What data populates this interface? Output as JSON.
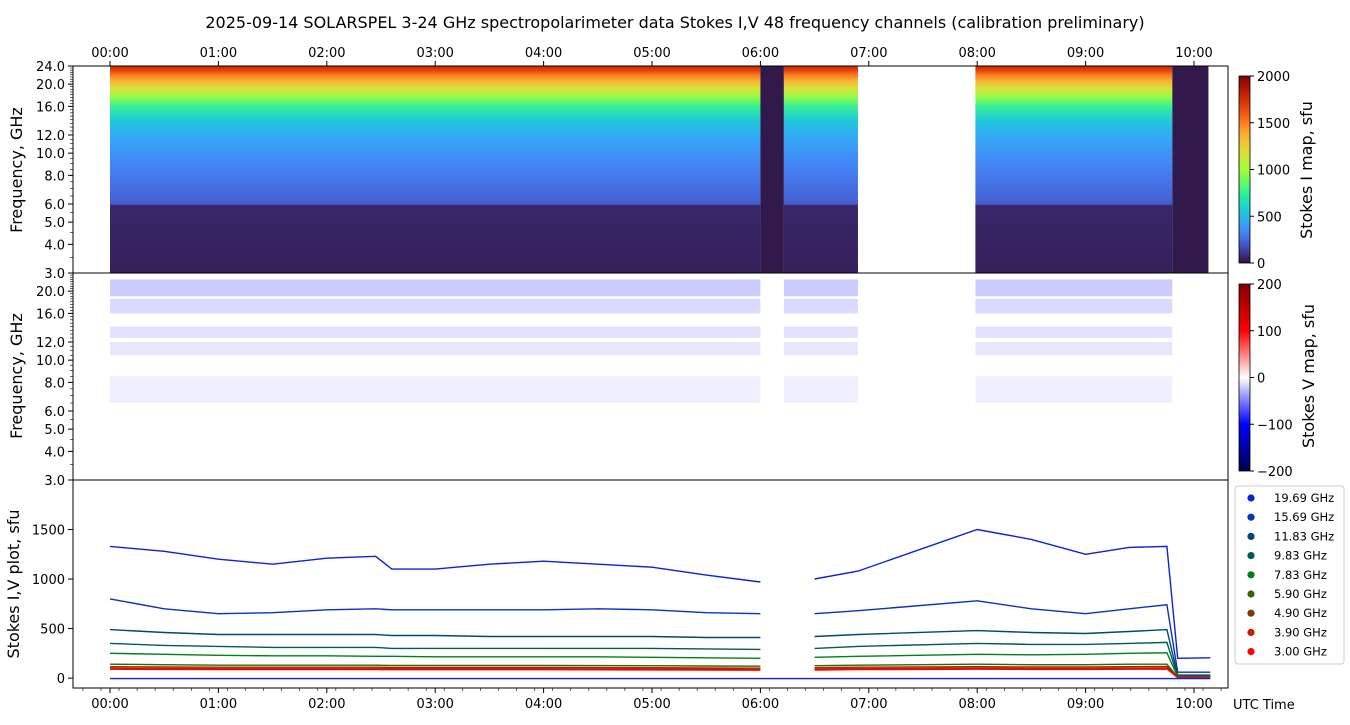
{
  "title": "2025-09-14  SOLARSPEL  3-24 GHz spectropolarimeter data   Stokes I,V   48 frequency channels   (calibration preliminary)",
  "colors": {
    "background": "#ffffff",
    "stokes_i_cmap": "turbo",
    "stokes_v_cmap": "seismic",
    "data_gap": "#ffffff"
  },
  "chart_data": [
    {
      "type": "heatmap",
      "name_hint": "stokes-i-map",
      "ylabel": "Frequency, GHz",
      "colorbar_label": "Stokes I map, sfu",
      "colorbar_range": [
        0,
        2000
      ],
      "colorbar_ticks": [
        "0",
        "500",
        "1000",
        "1500",
        "2000"
      ],
      "colormap": "turbo",
      "xlim": [
        "00:00",
        "10:00"
      ],
      "ylim": [
        3.0,
        24.0
      ],
      "yscale": "log",
      "y_ticks": [
        "3.0",
        "4.0",
        "5.0",
        "6.0",
        "8.0",
        "10.0",
        "12.0",
        "16.0",
        "20.0",
        "24.0"
      ],
      "x_ticks_top": [
        "00:00",
        "01:00",
        "02:00",
        "03:00",
        "04:00",
        "05:00",
        "06:00",
        "07:00",
        "08:00",
        "09:00",
        "10:00"
      ],
      "observation_segments": [
        {
          "start": "00:00",
          "end": "06:00",
          "state": "normal"
        },
        {
          "start": "06:00",
          "end": "06:13",
          "state": "low"
        },
        {
          "start": "06:13",
          "end": "06:54",
          "state": "normal"
        },
        {
          "start": "07:59",
          "end": "09:48",
          "state": "normal"
        },
        {
          "start": "09:48",
          "end": "10:08",
          "state": "low"
        }
      ],
      "spectrum_sfu": [
        {
          "freq": 3.0,
          "value": 40
        },
        {
          "freq": 5.9,
          "value": 60
        },
        {
          "freq": 6.0,
          "value": 220
        },
        {
          "freq": 8.0,
          "value": 300
        },
        {
          "freq": 10.0,
          "value": 380
        },
        {
          "freq": 12.0,
          "value": 460
        },
        {
          "freq": 14.0,
          "value": 560
        },
        {
          "freq": 16.0,
          "value": 760
        },
        {
          "freq": 17.5,
          "value": 950
        },
        {
          "freq": 19.0,
          "value": 1150
        },
        {
          "freq": 20.5,
          "value": 1330
        },
        {
          "freq": 22.0,
          "value": 1520
        },
        {
          "freq": 23.0,
          "value": 1680
        },
        {
          "freq": 24.0,
          "value": 1780
        }
      ]
    },
    {
      "type": "heatmap",
      "name_hint": "stokes-v-map",
      "ylabel": "Frequency, GHz",
      "colorbar_label": "Stokes V map, sfu",
      "colorbar_range": [
        -200,
        200
      ],
      "colorbar_ticks": [
        "−200",
        "−100",
        "0",
        "100",
        "200"
      ],
      "colormap": "seismic",
      "xlim": [
        "00:00",
        "10:00"
      ],
      "ylim": [
        3.0,
        24.0
      ],
      "yscale": "log",
      "y_ticks": [
        "3.0",
        "4.0",
        "5.0",
        "6.0",
        "8.0",
        "10.0",
        "12.0",
        "16.0",
        "20.0"
      ],
      "v_bands_sfu": [
        {
          "freq_low": 19.0,
          "freq_high": 22.5,
          "value": -25
        },
        {
          "freq_low": 16.0,
          "freq_high": 18.5,
          "value": -18
        },
        {
          "freq_low": 12.5,
          "freq_high": 14.0,
          "value": -14
        },
        {
          "freq_low": 10.5,
          "freq_high": 12.0,
          "value": -12
        },
        {
          "freq_low": 6.5,
          "freq_high": 8.5,
          "value": -8
        }
      ]
    },
    {
      "type": "line",
      "name_hint": "stokes-iv-plot",
      "ylabel": "Stokes I,V plot, sfu",
      "xlabel": "UTC Time",
      "xlim": [
        "00:00",
        "10:00"
      ],
      "ylim": [
        -100,
        2000
      ],
      "y_ticks": [
        "0",
        "500",
        "1000",
        "1500"
      ],
      "x_ticks": [
        "00:00",
        "01:00",
        "02:00",
        "03:00",
        "04:00",
        "05:00",
        "06:00",
        "07:00",
        "08:00",
        "09:00",
        "10:00"
      ],
      "x_hours": [
        0.0,
        0.5,
        1.0,
        1.5,
        2.0,
        2.45,
        2.6,
        3.0,
        3.5,
        4.0,
        4.5,
        5.0,
        5.5,
        6.0,
        6.25,
        6.5,
        6.9,
        8.0,
        8.5,
        9.0,
        9.4,
        9.75,
        9.85,
        10.15
      ],
      "series": [
        {
          "name": "19.69 GHz",
          "color": "#0a22dc",
          "values": [
            1330,
            1280,
            1200,
            1150,
            1210,
            1230,
            1100,
            1100,
            1150,
            1180,
            1150,
            1120,
            1040,
            970,
            null,
            1000,
            1080,
            1500,
            1400,
            1250,
            1320,
            1330,
            200,
            205
          ]
        },
        {
          "name": "15.69 GHz",
          "color": "#0a30c0",
          "values": [
            800,
            700,
            650,
            660,
            690,
            700,
            690,
            690,
            690,
            690,
            700,
            690,
            660,
            650,
            null,
            650,
            680,
            780,
            700,
            650,
            700,
            740,
            60,
            60
          ]
        },
        {
          "name": "11.83 GHz",
          "color": "#00467a",
          "values": [
            490,
            460,
            440,
            440,
            440,
            440,
            430,
            430,
            420,
            420,
            420,
            420,
            410,
            410,
            null,
            420,
            440,
            480,
            460,
            450,
            470,
            490,
            30,
            30
          ]
        },
        {
          "name": "9.83 GHz",
          "color": "#005c50",
          "values": [
            350,
            330,
            320,
            310,
            310,
            310,
            300,
            300,
            300,
            300,
            300,
            300,
            295,
            290,
            null,
            300,
            320,
            350,
            340,
            340,
            350,
            360,
            20,
            20
          ]
        },
        {
          "name": "7.83 GHz",
          "color": "#008018",
          "values": [
            250,
            240,
            230,
            225,
            225,
            220,
            220,
            215,
            215,
            215,
            215,
            210,
            205,
            200,
            null,
            210,
            220,
            240,
            235,
            240,
            250,
            255,
            15,
            15
          ]
        },
        {
          "name": "5.90 GHz",
          "color": "#406000",
          "values": [
            140,
            135,
            130,
            130,
            130,
            130,
            128,
            128,
            128,
            128,
            126,
            125,
            122,
            120,
            null,
            125,
            130,
            140,
            135,
            135,
            140,
            140,
            10,
            10
          ]
        },
        {
          "name": "4.90 GHz",
          "color": "#7a3c00",
          "values": [
            115,
            112,
            110,
            110,
            110,
            110,
            108,
            108,
            108,
            108,
            106,
            105,
            103,
            100,
            null,
            105,
            110,
            115,
            112,
            112,
            115,
            118,
            8,
            8
          ]
        },
        {
          "name": "3.90 GHz",
          "color": "#c81e00",
          "values": [
            100,
            98,
            96,
            96,
            96,
            96,
            95,
            95,
            95,
            95,
            94,
            93,
            91,
            90,
            null,
            92,
            96,
            100,
            98,
            98,
            100,
            102,
            6,
            6
          ]
        },
        {
          "name": "3.00 GHz",
          "color": "#ff0000",
          "values": [
            90,
            88,
            86,
            86,
            86,
            86,
            85,
            85,
            85,
            85,
            84,
            83,
            82,
            80,
            null,
            82,
            86,
            90,
            88,
            88,
            90,
            92,
            5,
            5
          ]
        }
      ],
      "stokes_v_near_zero": {
        "color": "#0a22dc",
        "value": -5
      }
    }
  ]
}
